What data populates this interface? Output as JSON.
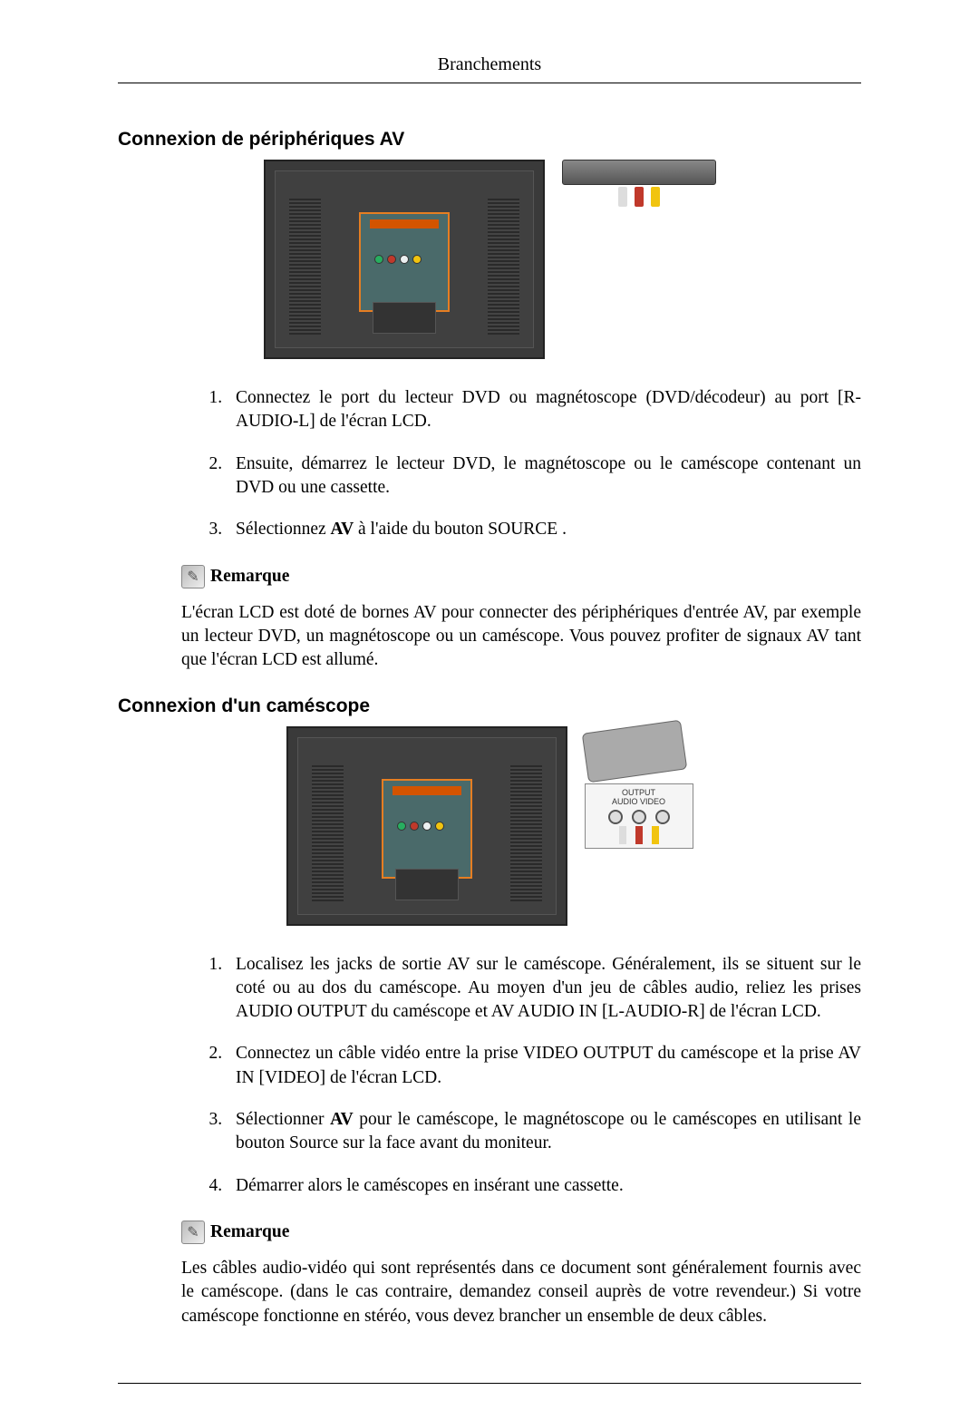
{
  "header": {
    "title": "Branchements"
  },
  "section1": {
    "heading": "Connexion de périphériques AV",
    "steps": [
      "Connectez le port du lecteur DVD ou magnétoscope (DVD/décodeur) au port [R-AUDIO-L] de l'écran LCD.",
      "Ensuite, démarrez le lecteur DVD, le magnétoscope ou le caméscope contenant un DVD ou une cassette.",
      "Sélectionnez AV à l'aide du bouton SOURCE ."
    ],
    "step3_prefix": "Sélectionnez ",
    "step3_bold": "AV",
    "step3_suffix": " à l'aide du bouton SOURCE .",
    "note_label": "Remarque",
    "note_text": "L'écran LCD est doté de bornes AV pour connecter des périphériques d'entrée AV, par exemple un lecteur DVD, un magnétoscope ou un caméscope. Vous pouvez profiter de signaux AV tant que l'écran LCD est allumé."
  },
  "section2": {
    "heading": "Connexion d'un caméscope",
    "output_label": "OUTPUT",
    "output_sublabel": "AUDIO    VIDEO",
    "steps_count": 4,
    "step1": "Localisez les jacks de sortie AV sur le caméscope. Généralement, ils se situent sur le coté ou au dos du caméscope. Au moyen d'un jeu de câbles audio, reliez les prises AUDIO OUTPUT du caméscope et AV AUDIO IN [L-AUDIO-R] de l'écran LCD.",
    "step2": "Connectez un câble vidéo entre la prise VIDEO OUTPUT du caméscope et la prise AV IN [VIDEO] de l'écran LCD.",
    "step3_prefix": "Sélectionner ",
    "step3_bold": "AV",
    "step3_suffix": " pour le caméscope, le magnétoscope ou le caméscopes en utilisant le bouton Source sur la face avant du moniteur.",
    "step4": "Démarrer alors le caméscopes en insérant une cassette.",
    "note_label": "Remarque",
    "note_text": "Les câbles audio-vidéo qui sont représentés dans ce document sont généralement fournis avec le caméscope. (dans le cas contraire, demandez conseil auprès de votre revendeur.) Si votre caméscope fonctionne en stéréo, vous devez brancher un ensemble de deux câbles."
  },
  "colors": {
    "monitor_bg": "#3a3a3a",
    "panel_border": "#e67e22",
    "panel_bg": "#4a6a6a",
    "red": "#c0392b",
    "white": "#ecf0f1",
    "yellow": "#f1c40f",
    "green": "#27ae60"
  }
}
